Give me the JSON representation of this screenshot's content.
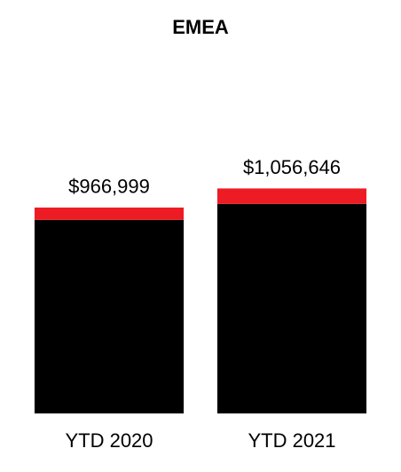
{
  "chart_data": {
    "type": "stacked_bar",
    "title": "EMEA",
    "categories": [
      "YTD 2020",
      "YTD 2021"
    ],
    "series": [
      {
        "color": "#000000",
        "values": [
          909000,
          984000
        ]
      },
      {
        "color": "#ed1c24",
        "values": [
          58000,
          72646
        ]
      }
    ],
    "total_values": [
      966999,
      1056646
    ],
    "total_labels": [
      "$966,999",
      "$1,056,646"
    ],
    "ylim": [
      0,
      1300000
    ]
  }
}
